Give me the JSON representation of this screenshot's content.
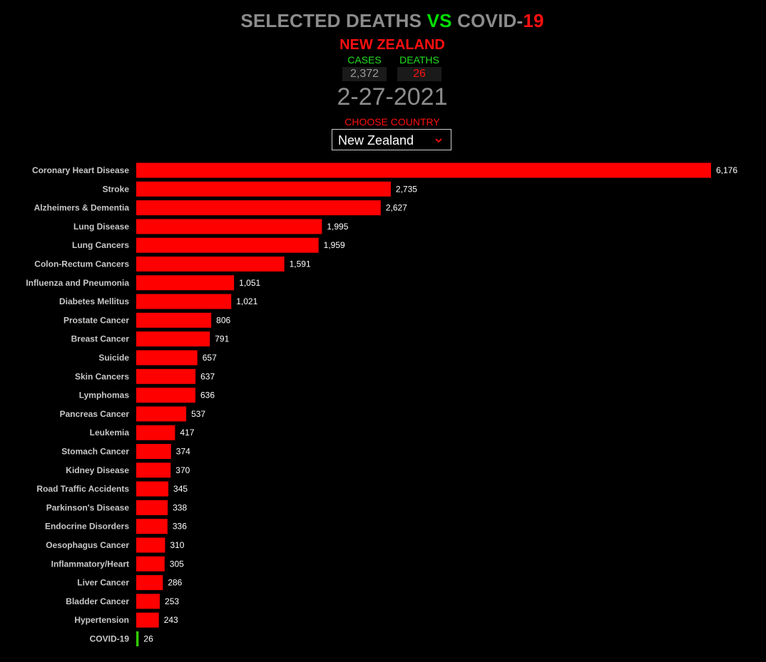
{
  "header": {
    "title_part1": "SELECTED DEATHS ",
    "title_vs": "VS",
    "title_part2": " COVID-",
    "title_19": "19",
    "country": "NEW ZEALAND",
    "cases_label": "CASES",
    "deaths_label": "DEATHS",
    "cases_value": "2,372",
    "deaths_value": "26",
    "date": "2-27-2021",
    "choose_label": "CHOOSE COUNTRY",
    "selected_country": "New Zealand"
  },
  "colors": {
    "bar": "#ff0000",
    "covid_bar": "#33cc00",
    "title_grey": "#8c8c8c",
    "accent_red": "#ff1010",
    "accent_green": "#00e000"
  },
  "icons": {
    "dropdown": "chevron-down-icon"
  },
  "chart_data": {
    "type": "bar",
    "orientation": "horizontal",
    "categories": [
      "Coronary Heart Disease",
      "Stroke",
      "Alzheimers & Dementia",
      "Lung Disease",
      "Lung Cancers",
      "Colon-Rectum Cancers",
      "Influenza and Pneumonia",
      "Diabetes Mellitus",
      "Prostate Cancer",
      "Breast Cancer",
      "Suicide",
      "Skin Cancers",
      "Lymphomas",
      "Pancreas Cancer",
      "Leukemia",
      "Stomach Cancer",
      "Kidney Disease",
      "Road Traffic Accidents",
      "Parkinson's Disease",
      "Endocrine Disorders",
      "Oesophagus Cancer",
      "Inflammatory/Heart",
      "Liver Cancer",
      "Bladder Cancer",
      "Hypertension",
      "COVID-19"
    ],
    "values": [
      6176,
      2735,
      2627,
      1995,
      1959,
      1591,
      1051,
      1021,
      806,
      791,
      657,
      637,
      636,
      537,
      417,
      374,
      370,
      345,
      338,
      336,
      310,
      305,
      286,
      253,
      243,
      26
    ],
    "value_labels": [
      "6,176",
      "2,735",
      "2,627",
      "1,995",
      "1,959",
      "1,591",
      "1,051",
      "1,021",
      "806",
      "791",
      "657",
      "637",
      "636",
      "537",
      "417",
      "374",
      "370",
      "345",
      "338",
      "336",
      "310",
      "305",
      "286",
      "253",
      "243",
      "26"
    ],
    "highlight_category": "COVID-19",
    "xlim": [
      0,
      6176
    ],
    "grid": false,
    "legend": "none",
    "title": "",
    "xlabel": "",
    "ylabel": ""
  }
}
